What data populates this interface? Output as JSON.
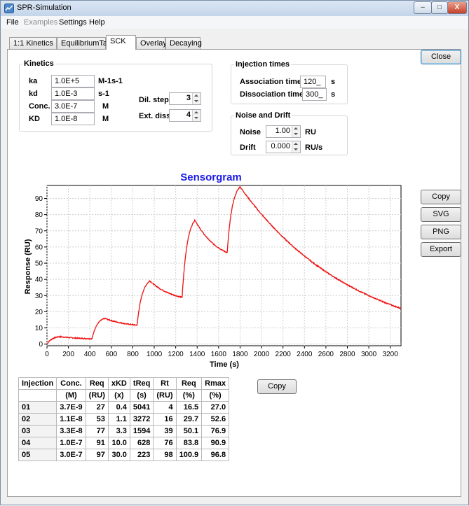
{
  "window": {
    "title": "SPR-Simulation",
    "controls": [
      "–",
      "□",
      "X"
    ]
  },
  "menu": [
    {
      "label": "File",
      "disabled": false
    },
    {
      "label": "Examples",
      "disabled": true
    },
    {
      "label": "Settings",
      "disabled": false
    },
    {
      "label": "Help",
      "disabled": false
    }
  ],
  "tabs": [
    {
      "label": "1:1 Kinetics",
      "active": false
    },
    {
      "label": "EquilibriumTab",
      "active": false
    },
    {
      "label": "SCK",
      "active": true
    },
    {
      "label": "Overlay",
      "active": false
    },
    {
      "label": "Decaying",
      "active": false
    }
  ],
  "kinetics": {
    "title": "Kinetics",
    "ka": {
      "label": "ka",
      "value": "1.0E+5",
      "unit": "M-1s-1"
    },
    "kd": {
      "label": "kd",
      "value": "1.0E-3",
      "unit": "s-1"
    },
    "conc": {
      "label": "Conc.",
      "value": "3.0E-7",
      "unit": "M"
    },
    "KD": {
      "label": "KD",
      "value": "1.0E-8",
      "unit": "M"
    },
    "dil_step": {
      "label": "Dil. step",
      "value": "3"
    },
    "ext_diss": {
      "label": "Ext. diss.",
      "value": "4"
    }
  },
  "injection": {
    "title": "Injection times",
    "association": {
      "label": "Association time",
      "value": "120_",
      "unit": "s"
    },
    "dissociation": {
      "label": "Dissociation time",
      "value": "300_",
      "unit": "s"
    }
  },
  "noise": {
    "title": "Noise and Drift",
    "noise": {
      "label": "Noise",
      "value": "1.00",
      "unit": "RU"
    },
    "drift": {
      "label": "Drift",
      "value": "0.000",
      "unit": "RU/s"
    }
  },
  "buttons": {
    "close": "Close",
    "copy_chart": "Copy",
    "svg": "SVG",
    "png": "PNG",
    "export": "Export",
    "copy_table": "Copy"
  },
  "chart_data": {
    "type": "line",
    "title": "Sensorgram",
    "xlabel": "Time (s)",
    "ylabel": "Response (RU)",
    "xlim": [
      0,
      3300
    ],
    "ylim": [
      -1,
      98
    ],
    "xticks": [
      0,
      200,
      400,
      600,
      800,
      1000,
      1200,
      1400,
      1600,
      1800,
      2000,
      2200,
      2400,
      2600,
      2800,
      3000,
      3200
    ],
    "yticks": [
      0,
      10,
      20,
      30,
      40,
      50,
      60,
      70,
      80,
      90
    ],
    "grid": true,
    "color": "#ee1111",
    "cycle_start": [
      0,
      420,
      840,
      1260,
      1680
    ],
    "association_s": 120,
    "dissociation_s": 300,
    "final_dissociation_s": 1500,
    "assoc_peaks": [
      4.6,
      15.9,
      39.0,
      76.6,
      97.2
    ],
    "diss_ends": [
      3.3,
      11.7,
      28.9,
      56.5,
      22.0
    ],
    "x": [
      0,
      60,
      120,
      420,
      480,
      540,
      840,
      900,
      960,
      1260,
      1320,
      1380,
      1680,
      1740,
      1800,
      1950,
      2100,
      2300,
      2500,
      2700,
      2900,
      3100,
      3300
    ],
    "y": [
      0,
      3.4,
      4.6,
      3.3,
      12.2,
      15.9,
      11.7,
      30.1,
      39.0,
      28.9,
      61.6,
      76.6,
      56.5,
      87.1,
      97.2,
      84.6,
      73.6,
      61.0,
      50.6,
      41.9,
      34.7,
      28.8,
      22.0
    ]
  },
  "results": {
    "headers": [
      "Injection",
      "Conc.",
      "Req",
      "xKD",
      "tReq",
      "Rt",
      "Req",
      "Rmax"
    ],
    "units": [
      "",
      "(M)",
      "(RU)",
      "(x)",
      "(s)",
      "(RU)",
      "(%)",
      "(%)"
    ],
    "rows": [
      [
        "01",
        "3.7E-9",
        "27",
        "0.4",
        "5041",
        "4",
        "16.5",
        "27.0"
      ],
      [
        "02",
        "1.1E-8",
        "53",
        "1.1",
        "3272",
        "16",
        "29.7",
        "52.6"
      ],
      [
        "03",
        "3.3E-8",
        "77",
        "3.3",
        "1594",
        "39",
        "50.1",
        "76.9"
      ],
      [
        "04",
        "1.0E-7",
        "91",
        "10.0",
        "628",
        "76",
        "83.8",
        "90.9"
      ],
      [
        "05",
        "3.0E-7",
        "97",
        "30.0",
        "223",
        "98",
        "100.9",
        "96.8"
      ]
    ]
  }
}
